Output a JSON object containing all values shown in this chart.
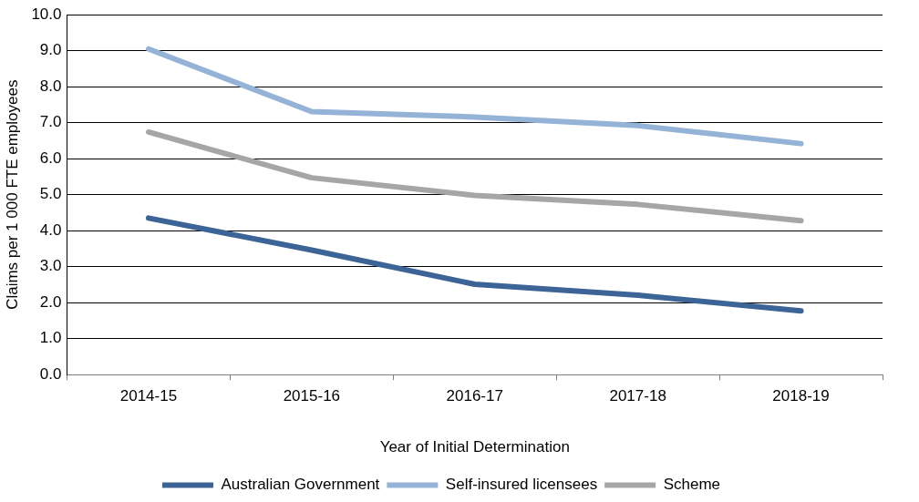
{
  "chart_data": {
    "type": "line",
    "xlabel": "Year of Initial Determination",
    "ylabel": "Claims per 1 000 FTE employees",
    "categories": [
      "2014-15",
      "2015-16",
      "2016-17",
      "2017-18",
      "2018-19"
    ],
    "series": [
      {
        "name": "Australian Government",
        "color": "#3c6496",
        "values": [
          4.35,
          3.46,
          2.51,
          2.21,
          1.77
        ]
      },
      {
        "name": "Self-insured licensees",
        "color": "#95b3d7",
        "values": [
          9.05,
          7.31,
          7.16,
          6.92,
          6.42
        ]
      },
      {
        "name": "Scheme",
        "color": "#a6a6a6",
        "values": [
          6.74,
          5.47,
          4.98,
          4.73,
          4.28
        ]
      }
    ],
    "ylim": [
      0,
      10
    ],
    "yticks": [
      {
        "value": 0,
        "label": "0.0"
      },
      {
        "value": 1,
        "label": "1.0"
      },
      {
        "value": 2,
        "label": "2.0"
      },
      {
        "value": 3,
        "label": "3.0"
      },
      {
        "value": 4,
        "label": "4.0"
      },
      {
        "value": 5,
        "label": "5.0"
      },
      {
        "value": 6,
        "label": "6.0"
      },
      {
        "value": 7,
        "label": "7.0"
      },
      {
        "value": 8,
        "label": "8.0"
      },
      {
        "value": 9,
        "label": "9.0"
      },
      {
        "value": 10,
        "label": "10.0"
      }
    ],
    "grid": "y",
    "legend": "bottom",
    "marker": "none",
    "line_style": "solid"
  }
}
